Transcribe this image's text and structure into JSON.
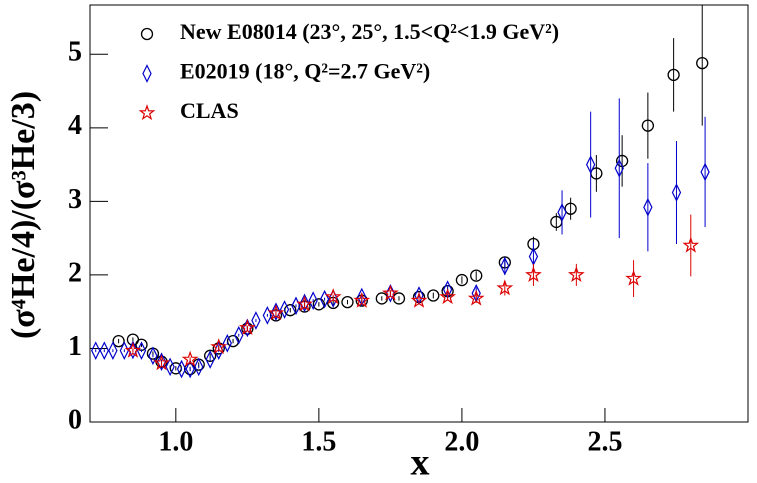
{
  "chart_data": {
    "type": "scatter",
    "x_label": "x",
    "y_label": "(σ⁴He/4)/(σ³He/3)",
    "xlim": [
      0.7,
      3.0
    ],
    "ylim": [
      0,
      5.67
    ],
    "xticks": [
      {
        "value": 1,
        "label": "1.0"
      },
      1.5,
      {
        "value": 2,
        "label": "2.0"
      },
      2.5
    ],
    "yticks": [
      0,
      1,
      2,
      3,
      4,
      5
    ],
    "legend": "top-left",
    "series": [
      {
        "name": "New E08014 (23°, 25°, 1.5<Q²<1.9 GeV²)",
        "color": "#000000",
        "marker": "circle",
        "x": [
          0.8,
          0.85,
          0.88,
          0.92,
          0.95,
          1.0,
          1.05,
          1.08,
          1.12,
          1.15,
          1.2,
          1.25,
          1.35,
          1.4,
          1.45,
          1.5,
          1.55,
          1.6,
          1.65,
          1.72,
          1.78,
          1.85,
          1.9,
          1.95,
          2.0,
          2.05,
          2.15,
          2.25,
          2.33,
          2.38,
          2.47,
          2.56,
          2.65,
          2.74,
          2.84
        ],
        "values": [
          1.1,
          1.12,
          1.05,
          0.93,
          0.82,
          0.73,
          0.72,
          0.78,
          0.9,
          1.0,
          1.1,
          1.27,
          1.45,
          1.52,
          1.57,
          1.6,
          1.62,
          1.63,
          1.65,
          1.68,
          1.68,
          1.7,
          1.72,
          1.78,
          1.93,
          1.99,
          2.17,
          2.42,
          2.72,
          2.9,
          3.38,
          3.55,
          4.03,
          4.72,
          4.88
        ],
        "errors": [
          0.03,
          0.03,
          0.03,
          0.03,
          0.03,
          0.03,
          0.03,
          0.03,
          0.03,
          0.03,
          0.03,
          0.03,
          0.03,
          0.03,
          0.03,
          0.03,
          0.03,
          0.03,
          0.03,
          0.03,
          0.03,
          0.03,
          0.04,
          0.05,
          0.05,
          0.06,
          0.08,
          0.1,
          0.12,
          0.15,
          0.25,
          0.35,
          0.45,
          0.5,
          0.85
        ]
      },
      {
        "name": "E02019 (18°, Q²=2.7 GeV²)",
        "color": "#0000cc",
        "marker": "diamond",
        "x": [
          0.72,
          0.75,
          0.78,
          0.82,
          0.85,
          0.88,
          0.92,
          0.95,
          0.98,
          1.02,
          1.05,
          1.08,
          1.12,
          1.15,
          1.18,
          1.22,
          1.25,
          1.28,
          1.32,
          1.35,
          1.38,
          1.42,
          1.45,
          1.48,
          1.52,
          1.55,
          1.65,
          1.75,
          1.85,
          1.95,
          2.05,
          2.15,
          2.25,
          2.35,
          2.45,
          2.55,
          2.65,
          2.75,
          2.85
        ],
        "values": [
          0.97,
          0.97,
          0.97,
          0.97,
          0.98,
          0.97,
          0.9,
          0.82,
          0.75,
          0.72,
          0.72,
          0.75,
          0.85,
          0.97,
          1.07,
          1.18,
          1.28,
          1.38,
          1.45,
          1.5,
          1.53,
          1.58,
          1.62,
          1.65,
          1.67,
          1.68,
          1.7,
          1.75,
          1.72,
          1.8,
          1.75,
          2.12,
          2.25,
          2.85,
          3.5,
          3.45,
          2.92,
          3.12,
          3.4
        ],
        "errors": [
          0.02,
          0.02,
          0.02,
          0.02,
          0.02,
          0.02,
          0.02,
          0.02,
          0.02,
          0.02,
          0.02,
          0.02,
          0.02,
          0.02,
          0.02,
          0.02,
          0.02,
          0.02,
          0.02,
          0.02,
          0.02,
          0.02,
          0.02,
          0.02,
          0.02,
          0.02,
          0.03,
          0.04,
          0.05,
          0.06,
          0.08,
          0.12,
          0.2,
          0.3,
          0.72,
          0.95,
          0.6,
          0.7,
          0.75
        ]
      },
      {
        "name": "CLAS",
        "color": "#dd0000",
        "marker": "star",
        "x": [
          0.85,
          0.95,
          1.05,
          1.15,
          1.25,
          1.35,
          1.45,
          1.55,
          1.65,
          1.75,
          1.85,
          1.95,
          2.05,
          2.15,
          2.25,
          2.4,
          2.6,
          2.8
        ],
        "values": [
          0.97,
          0.8,
          0.85,
          1.02,
          1.28,
          1.48,
          1.6,
          1.7,
          1.65,
          1.75,
          1.65,
          1.7,
          1.68,
          1.82,
          2.0,
          2.0,
          1.95,
          2.4
        ],
        "errors": [
          0.03,
          0.03,
          0.03,
          0.03,
          0.03,
          0.03,
          0.03,
          0.03,
          0.03,
          0.04,
          0.04,
          0.05,
          0.06,
          0.1,
          0.15,
          0.15,
          0.25,
          0.42
        ]
      }
    ]
  }
}
